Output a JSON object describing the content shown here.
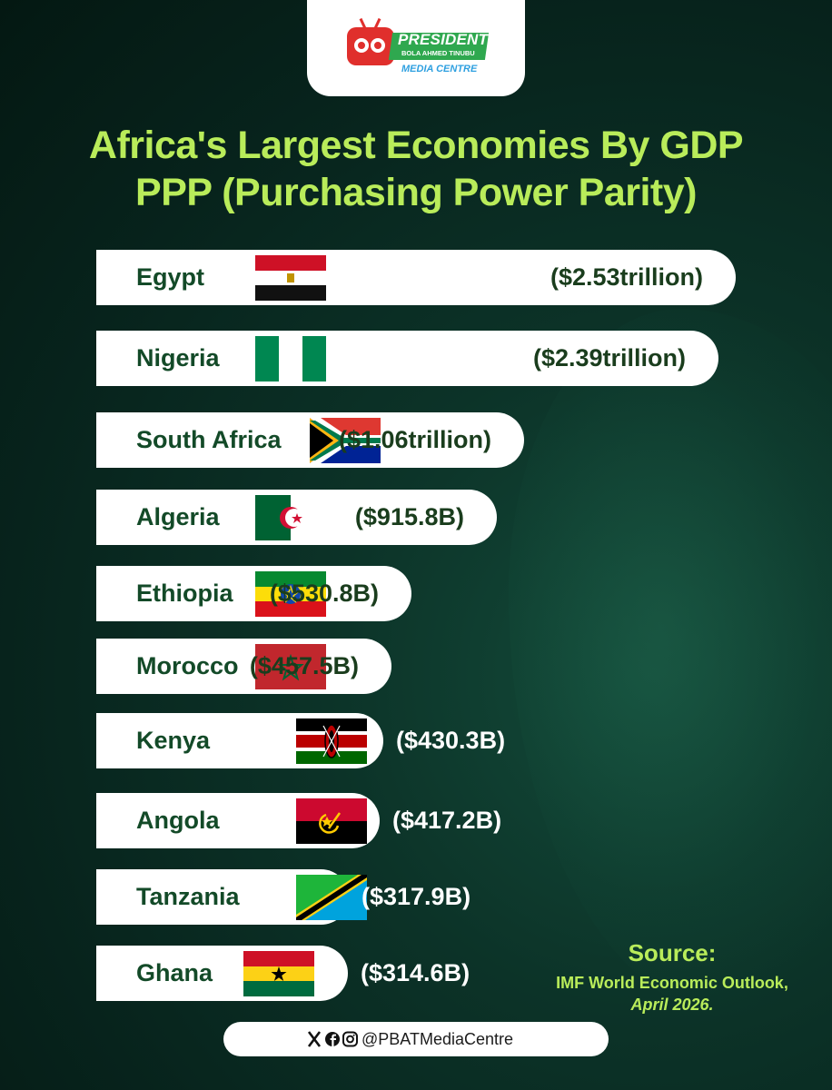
{
  "brand": {
    "name": "PRESIDENT",
    "subtitle": "BOLA AHMED TINUBU",
    "media": "MEDIA CENTRE"
  },
  "colors": {
    "background": "#0b3027",
    "title": "#b9ec5a",
    "bar": "#ffffff",
    "country_text": "#134a28"
  },
  "chart_data": {
    "type": "bar",
    "orientation": "horizontal",
    "title": "Africa's Largest Economies By GDP PPP (Purchasing Power Parity)",
    "categories": [
      "Egypt",
      "Nigeria",
      "South Africa",
      "Algeria",
      "Ethiopia",
      "Morocco",
      "Kenya",
      "Angola",
      "Tanzania",
      "Ghana"
    ],
    "values": [
      2530,
      2390,
      1060,
      915.8,
      530.8,
      457.5,
      430.3,
      417.2,
      317.9,
      314.6
    ],
    "units": "USD billions",
    "labels": [
      "($2.53trillion)",
      "($2.39trillion)",
      "($1.06trillion)",
      "($915.8B)",
      "($530.8B)",
      "($457.5B)",
      "($430.3B)",
      "($417.2B)",
      "($317.9B)",
      "($314.6B)"
    ],
    "flags": [
      "egypt-flag",
      "nigeria-flag",
      "south-africa-flag",
      "algeria-flag",
      "ethiopia-flag",
      "morocco-flag",
      "kenya-flag",
      "angola-flag",
      "tanzania-flag",
      "ghana-flag"
    ]
  },
  "source": {
    "label": "Source:",
    "text": "IMF World Economic Outlook,",
    "date": "April 2026."
  },
  "social": {
    "icons": [
      "x-icon",
      "facebook-icon",
      "instagram-icon"
    ],
    "handle": "@PBATMediaCentre"
  }
}
